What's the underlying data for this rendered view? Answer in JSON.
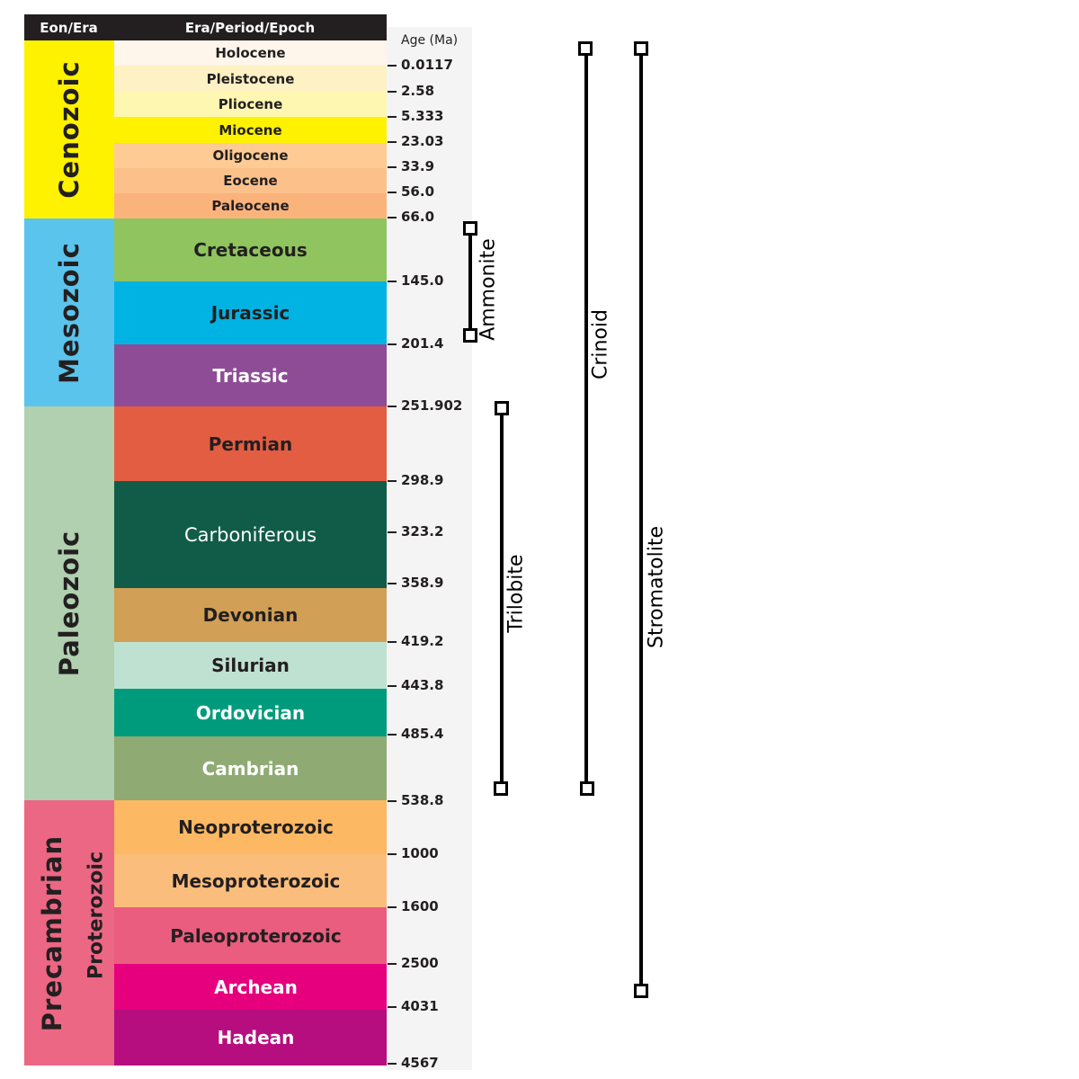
{
  "header": {
    "eon_era": "Eon/Era",
    "period": "Era/Period/Epoch",
    "age": "Age (Ma)"
  },
  "eras": [
    {
      "label": "Cenozoic",
      "color": "#fef200"
    },
    {
      "label": "Mesozoic",
      "color": "#5bc4ec"
    },
    {
      "label": "Paleozoic",
      "color": "#b0d0b0"
    },
    {
      "label": "Precambrian",
      "color": "#ec6784"
    }
  ],
  "sub_eon": {
    "label": "Proterozoic",
    "color": "#ec6784"
  },
  "units": [
    {
      "label": "Holocene",
      "color": "#fef6ea",
      "text_color": "#231f20"
    },
    {
      "label": "Pleistocene",
      "color": "#fef1c3",
      "text_color": "#231f20"
    },
    {
      "label": "Pliocene",
      "color": "#fef7b2",
      "text_color": "#231f20"
    },
    {
      "label": "Miocene",
      "color": "#fef200",
      "text_color": "#231f20"
    },
    {
      "label": "Oligocene",
      "color": "#fdcb93",
      "text_color": "#231f20"
    },
    {
      "label": "Eocene",
      "color": "#fcc18b",
      "text_color": "#231f20"
    },
    {
      "label": "Paleocene",
      "color": "#fbb37c",
      "text_color": "#231f20"
    },
    {
      "label": "Cretaceous",
      "color": "#8fc45f",
      "text_color": "#231f20"
    },
    {
      "label": "Jurassic",
      "color": "#00b3e3",
      "text_color": "#231f20"
    },
    {
      "label": "Triassic",
      "color": "#8e4c96",
      "text_color": "#ffffff"
    },
    {
      "label": "Permian",
      "color": "#e35d42",
      "text_color": "#231f20"
    },
    {
      "label": "Carboniferous",
      "color": "#115c48",
      "text_color": "#ffffff"
    },
    {
      "label": "Devonian",
      "color": "#d19f55",
      "text_color": "#231f20"
    },
    {
      "label": "Silurian",
      "color": "#bfe1d1",
      "text_color": "#231f20"
    },
    {
      "label": "Ordovician",
      "color": "#009b7d",
      "text_color": "#ffffff"
    },
    {
      "label": "Cambrian",
      "color": "#8fab73",
      "text_color": "#ffffff"
    },
    {
      "label": "Neoproterozoic",
      "color": "#fdb863",
      "text_color": "#231f20"
    },
    {
      "label": "Mesoproterozoic",
      "color": "#fbbd7c",
      "text_color": "#231f20"
    },
    {
      "label": "Paleoproterozoic",
      "color": "#ea5d7e",
      "text_color": "#231f20"
    },
    {
      "label": "Archean",
      "color": "#e6007e",
      "text_color": "#ffffff"
    },
    {
      "label": "Hadean",
      "color": "#b60d7f",
      "text_color": "#ffffff"
    }
  ],
  "ages": [
    "0.0117",
    "2.58",
    "5.333",
    "23.03",
    "33.9",
    "56.0",
    "66.0",
    "145.0",
    "201.4",
    "251.902",
    "298.9",
    "323.2",
    "358.9",
    "419.2",
    "443.8",
    "485.4",
    "538.8",
    "1000",
    "1600",
    "2500",
    "4031",
    "4567"
  ],
  "fossil_ranges": [
    {
      "label": "Ammonite",
      "start": "66.0",
      "end": "201.4"
    },
    {
      "label": "Trilobite",
      "start": "251.902",
      "end": "538.8"
    },
    {
      "label": "Crinoid",
      "start": "0.0117",
      "end": "538.8"
    },
    {
      "label": "Stromatolite",
      "start": "0.0117",
      "end": "4031"
    }
  ]
}
